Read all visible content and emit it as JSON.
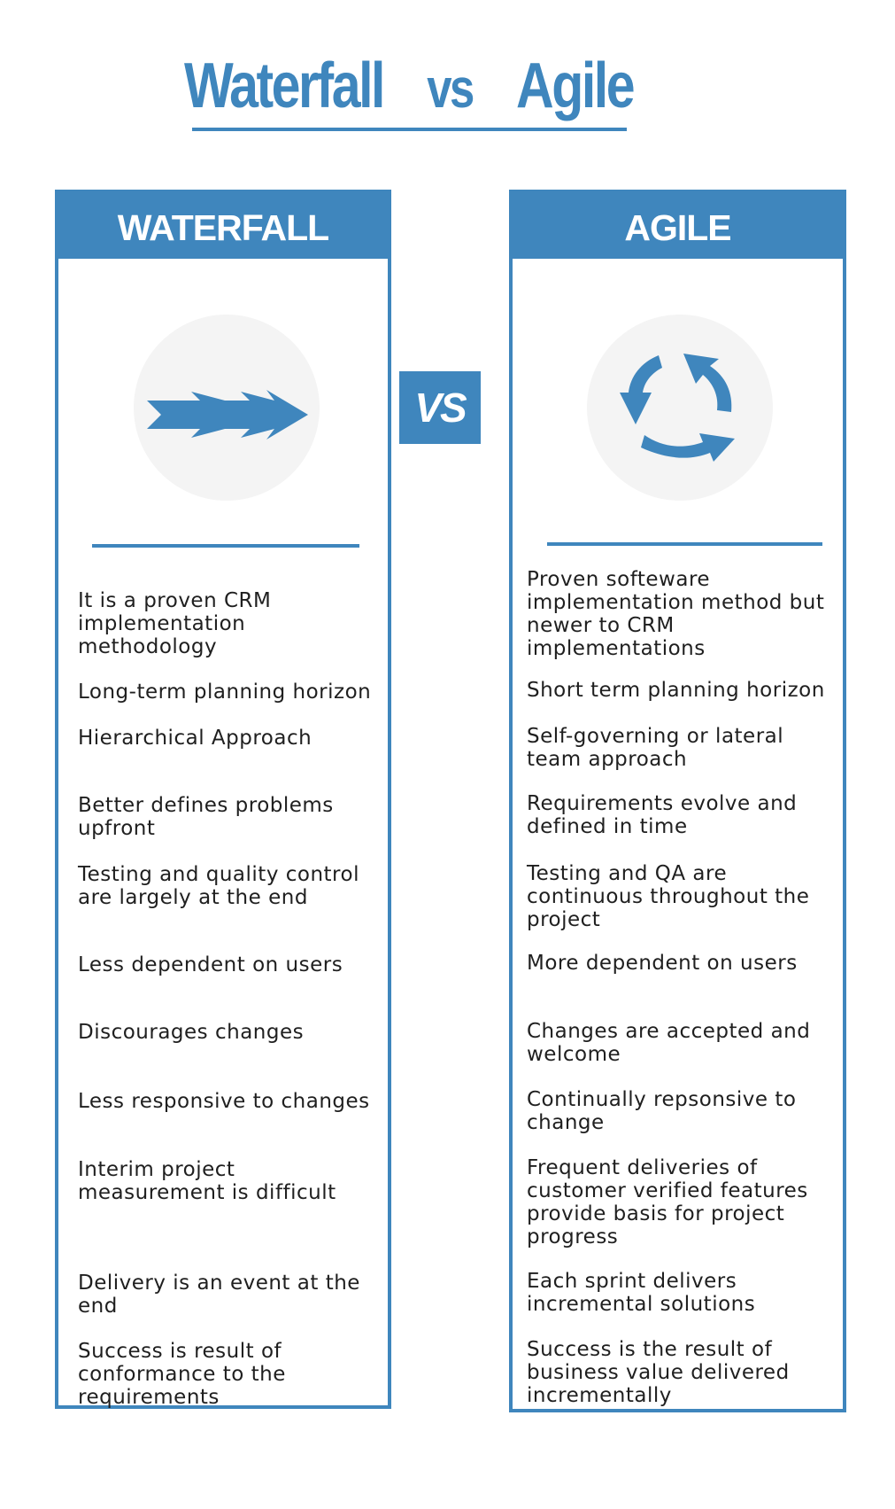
{
  "title": {
    "left": "Waterfall",
    "vs": "vs",
    "right": "Agile"
  },
  "vs_badge": "VS",
  "colors": {
    "accent": "#3f86bd",
    "icon_bg": "#f4f4f4",
    "text": "#1f1f1f"
  },
  "waterfall": {
    "heading": "WATERFALL",
    "icon": "triple-arrow-right-icon",
    "items": [
      "It is a proven CRM implementation methodology",
      "Long-term planning horizon",
      "Hierarchical Approach",
      "Better defines problems upfront",
      "Testing and quality control are largely at the end",
      "Less dependent on users",
      "Discourages changes",
      "Less responsive to changes",
      "Interim project measurement is difficult",
      "Delivery is an event at the end",
      "Success is result of conformance to the requirements"
    ]
  },
  "agile": {
    "heading": "AGILE",
    "icon": "cycle-arrows-icon",
    "items": [
      "Proven softeware implementation method but newer to CRM implementations",
      "Short term planning horizon",
      "Self-governing or lateral team approach",
      "Requirements evolve and defined in time",
      "Testing and QA are continuous throughout the project",
      "More dependent on users",
      "Changes are accepted and welcome",
      "Continually repsonsive to change",
      "Frequent deliveries of customer verified features provide basis for project progress",
      "Each sprint delivers incremental solutions",
      "Success is the result of business value delivered incrementally"
    ]
  }
}
